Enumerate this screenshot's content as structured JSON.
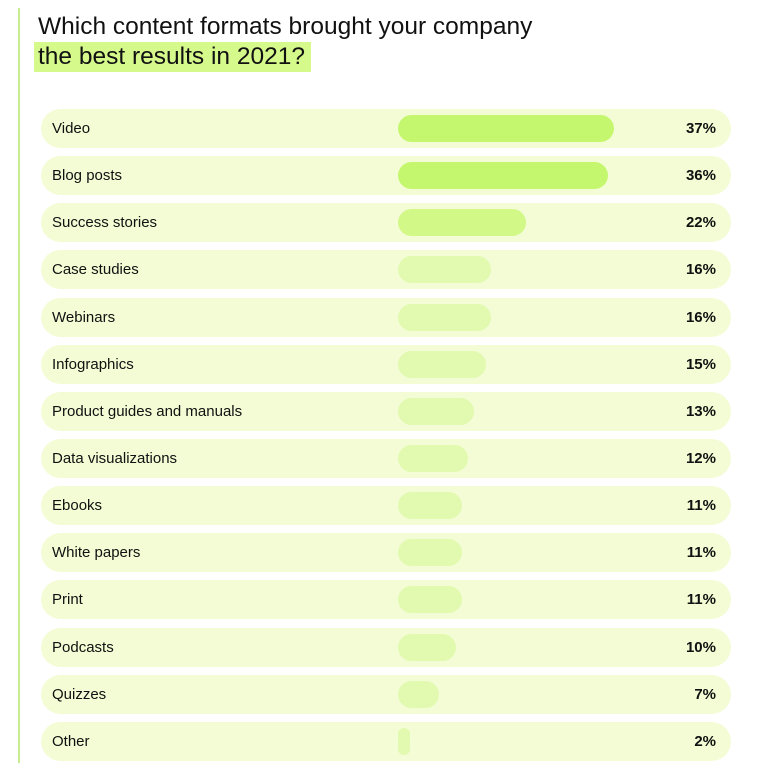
{
  "title": {
    "line1": "Which content formats brought your company",
    "line2": "the best results in 2021?"
  },
  "colors": {
    "row_background": "#f3fcd4",
    "bar_shades": [
      "#c5f76e",
      "#d2f887",
      "#e1fab0"
    ],
    "title_highlight": "#d6f98c",
    "accent_line": "#c9ec8f"
  },
  "chart_data": {
    "type": "bar",
    "orientation": "horizontal",
    "categories": [
      "Video",
      "Blog posts",
      "Success stories",
      "Case studies",
      "Webinars",
      "Infographics",
      "Product guides and manuals",
      "Data visualizations",
      "Ebooks",
      "White papers",
      "Print",
      "Podcasts",
      "Quizzes",
      "Other"
    ],
    "values": [
      37,
      36,
      22,
      16,
      16,
      15,
      13,
      12,
      11,
      11,
      11,
      10,
      7,
      2
    ],
    "value_labels": [
      "37%",
      "36%",
      "22%",
      "16%",
      "16%",
      "15%",
      "13%",
      "12%",
      "11%",
      "11%",
      "11%",
      "10%",
      "7%",
      "2%"
    ],
    "unit": "%"
  }
}
